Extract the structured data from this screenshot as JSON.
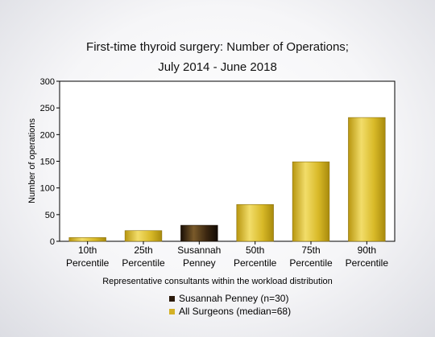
{
  "chart_data": {
    "type": "bar",
    "title": "First-time thyroid surgery: Number of Operations;",
    "subtitle": "July 2014 - June 2018",
    "xlabel": "Representative consultants within the workload distribution",
    "ylabel": "Number of operations",
    "ylim": [
      0,
      300
    ],
    "yticks": [
      0,
      50,
      100,
      150,
      200,
      250,
      300
    ],
    "categories": [
      [
        "10th",
        "Percentile"
      ],
      [
        "25th",
        "Percentile"
      ],
      [
        "Susannah",
        "Penney"
      ],
      [
        "50th",
        "Percentile"
      ],
      [
        "75th",
        "Percentile"
      ],
      [
        "90th",
        "Percentile"
      ]
    ],
    "values": [
      7,
      20,
      30,
      69,
      149,
      232
    ],
    "highlight_index": 2,
    "legend": [
      {
        "label": "Susannah Penney (n=30)",
        "color": "#2b1a0c"
      },
      {
        "label": "All Surgeons (median=68)",
        "color": "#d4b126"
      }
    ],
    "colors": {
      "bar": "#d4b126",
      "highlight": "#2b1a0c"
    },
    "grid": false
  }
}
